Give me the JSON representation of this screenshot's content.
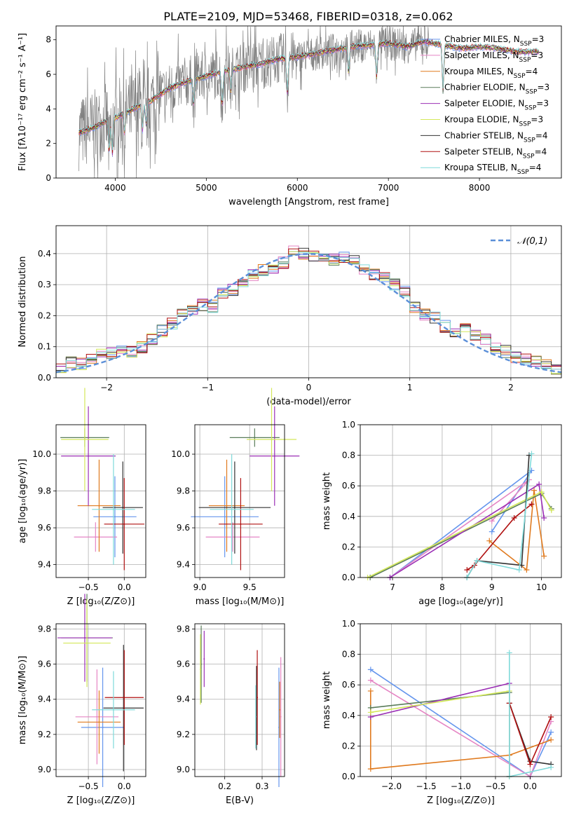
{
  "figure_title": "PLATE=2109, MJD=53468, FIBERID=0318, z=0.062",
  "colors": {
    "Chabrier MILES": "#6495ed",
    "Salpeter MILES": "#e585c4",
    "Kroupa MILES": "#e07a1e",
    "Chabrier ELODIE": "#5a7d5a",
    "Salpeter ELODIE": "#9b2fb5",
    "Kroupa ELODIE": "#d4e85a",
    "Chabrier STELIB": "#333333",
    "Salpeter STELIB": "#b01010",
    "Kroupa STELIB": "#7fdada",
    "data": "#808080",
    "gaussian": "#5b8fd8"
  },
  "chart_data": [
    {
      "id": "spectrum",
      "type": "line",
      "title": "PLATE=2109, MJD=53468, FIBERID=0318, z=0.062",
      "xlabel": "wavelength [Angstrom, rest frame]",
      "ylabel": "Flux [fλ10⁻¹⁷ erg cm⁻² s⁻¹ A⁻¹]",
      "xlim": [
        3350,
        8900
      ],
      "ylim": [
        0,
        8.8
      ],
      "xticks": [
        4000,
        5000,
        6000,
        7000,
        8000
      ],
      "yticks": [
        0,
        2,
        4,
        6,
        8
      ],
      "grid": false,
      "legend_position": "top-right",
      "legend": [
        "Chabrier MILES, N_SSP=3",
        "Salpeter MILES, N_SSP=3",
        "Kroupa MILES, N_SSP=4",
        "Chabrier ELODIE, N_SSP=3",
        "Salpeter ELODIE, N_SSP=3",
        "Kroupa ELODIE, N_SSP=3",
        "Chabrier STELIB, N_SSP=4",
        "Salpeter STELIB, N_SSP=4",
        "Kroupa STELIB, N_SSP=4"
      ],
      "continuum": {
        "x": [
          3600,
          3700,
          3800,
          3900,
          4000,
          4200,
          4400,
          4600,
          4800,
          5000,
          5200,
          5400,
          5600,
          5800,
          6000,
          6200,
          6400,
          6600,
          6800,
          7000,
          7200,
          7400,
          7600,
          7800,
          8000,
          8200,
          8400,
          8600
        ],
        "y": [
          2.6,
          2.8,
          3.0,
          3.3,
          3.5,
          4.0,
          4.5,
          5.2,
          5.6,
          5.9,
          6.2,
          6.4,
          6.6,
          6.9,
          7.0,
          7.2,
          7.4,
          7.6,
          7.7,
          7.8,
          7.6,
          7.9,
          7.7,
          7.5,
          7.6,
          7.5,
          7.3,
          7.3
        ]
      }
    },
    {
      "id": "residuals",
      "type": "bar",
      "xlabel": "(data-model)/error",
      "ylabel": "Normed distribution",
      "xlim": [
        -2.5,
        2.5
      ],
      "ylim": [
        0,
        0.49
      ],
      "xticks": [
        -2,
        -1,
        0,
        1,
        2
      ],
      "yticks": [
        0.0,
        0.1,
        0.2,
        0.3,
        0.4
      ],
      "grid": true,
      "legend_position": "top-right",
      "legend": [
        "𝒩(0,1)"
      ],
      "bin_width": 0.1,
      "x": [
        -2.5,
        -2.4,
        -2.3,
        -2.2,
        -2.1,
        -2.0,
        -1.9,
        -1.8,
        -1.7,
        -1.6,
        -1.5,
        -1.4,
        -1.3,
        -1.2,
        -1.1,
        -1.0,
        -0.9,
        -0.8,
        -0.7,
        -0.6,
        -0.5,
        -0.4,
        -0.3,
        -0.2,
        -0.1,
        0.0,
        0.1,
        0.2,
        0.3,
        0.4,
        0.5,
        0.6,
        0.7,
        0.8,
        0.9,
        1.0,
        1.1,
        1.2,
        1.3,
        1.4,
        1.5,
        1.6,
        1.7,
        1.8,
        1.9,
        2.0,
        2.1,
        2.2,
        2.3,
        2.4
      ],
      "y": [
        0.035,
        0.048,
        0.045,
        0.06,
        0.075,
        0.08,
        0.085,
        0.085,
        0.1,
        0.125,
        0.15,
        0.175,
        0.205,
        0.225,
        0.235,
        0.23,
        0.27,
        0.285,
        0.3,
        0.33,
        0.345,
        0.355,
        0.37,
        0.41,
        0.4,
        0.395,
        0.395,
        0.38,
        0.385,
        0.38,
        0.35,
        0.335,
        0.325,
        0.3,
        0.275,
        0.225,
        0.205,
        0.195,
        0.165,
        0.145,
        0.16,
        0.14,
        0.125,
        0.095,
        0.085,
        0.065,
        0.06,
        0.05,
        0.04,
        0.03
      ]
    },
    {
      "id": "age_vs_Z",
      "type": "scatter",
      "xlabel": "Z [log₁₀(Z/Z⊙)]",
      "ylabel": "age  [log₁₀(age/yr)]",
      "xlim": [
        -0.95,
        0.3
      ],
      "ylim": [
        9.33,
        10.16
      ],
      "xticks": [
        -0.5,
        0.0
      ],
      "yticks": [
        9.4,
        9.6,
        9.8,
        10.0
      ],
      "grid": true,
      "series": [
        {
          "name": "Chabrier MILES",
          "x": -0.13,
          "y": 9.66,
          "xerr": 0.3,
          "yerr": 0.22
        },
        {
          "name": "Salpeter MILES",
          "x": -0.4,
          "y": 9.55,
          "xerr": 0.3,
          "yerr": 0.08
        },
        {
          "name": "Kroupa MILES",
          "x": -0.35,
          "y": 9.72,
          "xerr": 0.3,
          "yerr": 0.25
        },
        {
          "name": "Chabrier ELODIE",
          "x": -0.55,
          "y": 10.09,
          "xerr": 0.34,
          "yerr": 0.05
        },
        {
          "name": "Salpeter ELODIE",
          "x": -0.5,
          "y": 9.99,
          "xerr": 0.38,
          "yerr": 0.27
        },
        {
          "name": "Kroupa ELODIE",
          "x": -0.55,
          "y": 10.08,
          "xerr": 0.33,
          "yerr": 0.28
        },
        {
          "name": "Chabrier STELIB",
          "x": -0.02,
          "y": 9.71,
          "xerr": 0.28,
          "yerr": 0.25
        },
        {
          "name": "Salpeter STELIB",
          "x": 0.0,
          "y": 9.62,
          "xerr": 0.28,
          "yerr": 0.25
        },
        {
          "name": "Kroupa STELIB",
          "x": -0.15,
          "y": 9.7,
          "xerr": 0.3,
          "yerr": 0.3
        }
      ]
    },
    {
      "id": "age_vs_mass",
      "type": "scatter",
      "xlabel": "mass [log₁₀(M/M⊙)]",
      "ylabel": "",
      "xlim": [
        8.95,
        9.85
      ],
      "ylim": [
        9.33,
        10.16
      ],
      "xticks": [
        9.0,
        9.5
      ],
      "yticks": [
        9.4,
        9.6,
        9.8,
        10.0
      ],
      "grid": true,
      "series": [
        {
          "name": "Chabrier MILES",
          "x": 9.25,
          "y": 9.66,
          "xerr": 0.34,
          "yerr": 0.22
        },
        {
          "name": "Salpeter MILES",
          "x": 9.33,
          "y": 9.55,
          "xerr": 0.27,
          "yerr": 0.08
        },
        {
          "name": "Kroupa MILES",
          "x": 9.27,
          "y": 9.72,
          "xerr": 0.18,
          "yerr": 0.25
        },
        {
          "name": "Chabrier ELODIE",
          "x": 9.55,
          "y": 10.09,
          "xerr": 0.25,
          "yerr": 0.05
        },
        {
          "name": "Salpeter ELODIE",
          "x": 9.75,
          "y": 9.99,
          "xerr": 0.25,
          "yerr": 0.27
        },
        {
          "name": "Kroupa ELODIE",
          "x": 9.72,
          "y": 10.08,
          "xerr": 0.25,
          "yerr": 0.28
        },
        {
          "name": "Chabrier STELIB",
          "x": 9.35,
          "y": 9.71,
          "xerr": 0.36,
          "yerr": 0.25
        },
        {
          "name": "Salpeter STELIB",
          "x": 9.41,
          "y": 9.62,
          "xerr": 0.22,
          "yerr": 0.25
        },
        {
          "name": "Kroupa STELIB",
          "x": 9.32,
          "y": 9.7,
          "xerr": 0.22,
          "yerr": 0.3
        }
      ]
    },
    {
      "id": "weight_vs_age",
      "type": "line",
      "xlabel": "age  [log₁₀(age/yr)]",
      "ylabel": "mass weight",
      "xlim": [
        6.35,
        10.4
      ],
      "ylim": [
        0,
        1.0
      ],
      "xticks": [
        7,
        8,
        9,
        10
      ],
      "yticks": [
        0.0,
        0.2,
        0.4,
        0.6,
        0.8,
        1.0
      ],
      "grid": true,
      "series": [
        {
          "name": "Chabrier MILES",
          "x": [
            9.0,
            9.8,
            6.95
          ],
          "y": [
            0.3,
            0.7,
            0.0
          ]
        },
        {
          "name": "Salpeter MILES",
          "x": [
            9.0,
            9.75,
            6.95
          ],
          "y": [
            0.37,
            0.64,
            0.0
          ]
        },
        {
          "name": "Kroupa MILES",
          "x": [
            8.95,
            9.7,
            9.85,
            10.05
          ],
          "y": [
            0.24,
            0.05,
            0.57,
            0.14
          ]
        },
        {
          "name": "Chabrier ELODIE",
          "x": [
            6.55,
            10.0,
            10.2
          ],
          "y": [
            0.0,
            0.55,
            0.45
          ]
        },
        {
          "name": "Salpeter ELODIE",
          "x": [
            6.95,
            9.95,
            10.05
          ],
          "y": [
            0.0,
            0.61,
            0.39
          ]
        },
        {
          "name": "Kroupa ELODIE",
          "x": [
            6.5,
            10.0,
            10.2
          ],
          "y": [
            0.0,
            0.56,
            0.44
          ]
        },
        {
          "name": "Chabrier STELIB",
          "x": [
            8.5,
            8.7,
            9.6,
            9.75
          ],
          "y": [
            0.0,
            0.11,
            0.08,
            0.8
          ]
        },
        {
          "name": "Salpeter STELIB",
          "x": [
            8.5,
            8.65,
            9.45,
            9.8
          ],
          "y": [
            0.05,
            0.08,
            0.39,
            0.48
          ]
        },
        {
          "name": "Kroupa STELIB",
          "x": [
            8.5,
            8.7,
            9.55,
            9.8
          ],
          "y": [
            0.0,
            0.11,
            0.05,
            0.81
          ]
        }
      ]
    },
    {
      "id": "mass_vs_Z",
      "type": "scatter",
      "xlabel": "Z [log₁₀(Z/Z⊙)]",
      "ylabel": "mass [log₁₀(M/M⊙)]",
      "xlim": [
        -0.95,
        0.3
      ],
      "ylim": [
        8.96,
        9.83
      ],
      "xticks": [
        -0.5,
        0.0
      ],
      "yticks": [
        9.0,
        9.2,
        9.4,
        9.6,
        9.8
      ],
      "grid": true,
      "series": [
        {
          "name": "Chabrier MILES",
          "x": -0.3,
          "y": 9.24,
          "xerr": 0.3,
          "yerr": 0.34
        },
        {
          "name": "Salpeter MILES",
          "x": -0.38,
          "y": 9.3,
          "xerr": 0.3,
          "yerr": 0.27
        },
        {
          "name": "Kroupa MILES",
          "x": -0.35,
          "y": 9.27,
          "xerr": 0.3,
          "yerr": 0.18
        },
        {
          "name": "Chabrier ELODIE",
          "x": -0.52,
          "y": 9.75,
          "xerr": 0.36,
          "yerr": 0.25
        },
        {
          "name": "Salpeter ELODIE",
          "x": -0.55,
          "y": 9.75,
          "xerr": 0.38,
          "yerr": 0.25
        },
        {
          "name": "Kroupa ELODIE",
          "x": -0.52,
          "y": 9.72,
          "xerr": 0.33,
          "yerr": 0.25
        },
        {
          "name": "Chabrier STELIB",
          "x": -0.01,
          "y": 9.35,
          "xerr": 0.28,
          "yerr": 0.36
        },
        {
          "name": "Salpeter STELIB",
          "x": 0.0,
          "y": 9.41,
          "xerr": 0.27,
          "yerr": 0.27
        },
        {
          "name": "Kroupa STELIB",
          "x": -0.15,
          "y": 9.34,
          "xerr": 0.3,
          "yerr": 0.22
        }
      ]
    },
    {
      "id": "mass_vs_EBV",
      "type": "scatter",
      "xlabel": "E(B-V)",
      "ylabel": "",
      "xlim": [
        0.12,
        0.36
      ],
      "ylim": [
        8.96,
        9.83
      ],
      "xticks": [
        0.2,
        0.3
      ],
      "yticks": [
        9.0,
        9.2,
        9.4,
        9.6,
        9.8
      ],
      "grid": true,
      "series": [
        {
          "name": "Chabrier MILES",
          "x": 0.345,
          "y": 9.24,
          "yerr": 0.34
        },
        {
          "name": "Salpeter MILES",
          "x": 0.35,
          "y": 9.3,
          "yerr": 0.34
        },
        {
          "name": "Kroupa MILES",
          "x": 0.347,
          "y": 9.34,
          "yerr": 0.16
        },
        {
          "name": "Chabrier ELODIE",
          "x": 0.137,
          "y": 9.6,
          "yerr": 0.22
        },
        {
          "name": "Salpeter ELODIE",
          "x": 0.145,
          "y": 9.63,
          "yerr": 0.16
        },
        {
          "name": "Kroupa ELODIE",
          "x": 0.135,
          "y": 9.57,
          "yerr": 0.2
        },
        {
          "name": "Chabrier STELIB",
          "x": 0.285,
          "y": 9.35,
          "yerr": 0.24
        },
        {
          "name": "Salpeter STELIB",
          "x": 0.287,
          "y": 9.41,
          "yerr": 0.27
        },
        {
          "name": "Kroupa STELIB",
          "x": 0.283,
          "y": 9.3,
          "yerr": 0.18
        }
      ]
    },
    {
      "id": "weight_vs_Z",
      "type": "line",
      "xlabel": "Z [log₁₀(Z/Z⊙)]",
      "ylabel": "mass weight",
      "xlim": [
        -2.45,
        0.45
      ],
      "ylim": [
        0,
        1.0
      ],
      "xticks": [
        -2.0,
        -1.5,
        -1.0,
        -0.5,
        0.0
      ],
      "yticks": [
        0.0,
        0.2,
        0.4,
        0.6,
        0.8,
        1.0
      ],
      "grid": true,
      "series": [
        {
          "name": "Chabrier MILES",
          "x": [
            -2.3,
            0.0,
            0.3
          ],
          "y": [
            0.7,
            0.0,
            0.29
          ]
        },
        {
          "name": "Salpeter MILES",
          "x": [
            -2.3,
            0.0,
            0.3
          ],
          "y": [
            0.63,
            0.0,
            0.36
          ]
        },
        {
          "name": "Kroupa MILES",
          "x": [
            -2.3,
            -2.3,
            -0.3,
            0.3
          ],
          "y": [
            0.56,
            0.05,
            0.14,
            0.24
          ]
        },
        {
          "name": "Chabrier ELODIE",
          "x": [
            -2.3,
            -0.3,
            -0.3
          ],
          "y": [
            0.45,
            0.55,
            0.0
          ]
        },
        {
          "name": "Salpeter ELODIE",
          "x": [
            -2.3,
            -0.3,
            -0.3
          ],
          "y": [
            0.39,
            0.61,
            0.0
          ]
        },
        {
          "name": "Kroupa ELODIE",
          "x": [
            -2.3,
            -0.3,
            -0.3
          ],
          "y": [
            0.42,
            0.56,
            0.0
          ]
        },
        {
          "name": "Chabrier STELIB",
          "x": [
            -0.3,
            0.0,
            0.3
          ],
          "y": [
            0.48,
            0.1,
            0.08
          ]
        },
        {
          "name": "Salpeter STELIB",
          "x": [
            -0.3,
            0.0,
            0.3
          ],
          "y": [
            0.48,
            0.08,
            0.39
          ]
        },
        {
          "name": "Kroupa STELIB",
          "x": [
            -0.3,
            -0.3,
            0.3
          ],
          "y": [
            0.81,
            0.0,
            0.06
          ]
        }
      ]
    }
  ]
}
